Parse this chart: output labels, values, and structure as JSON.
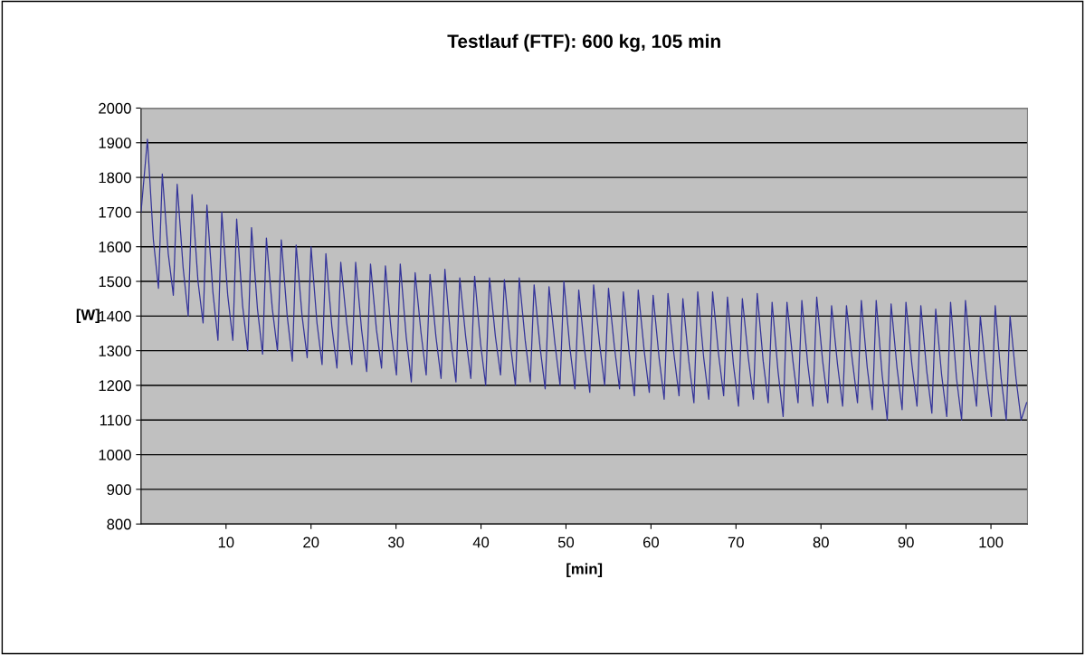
{
  "chart_data": {
    "type": "line",
    "title": "Testlauf (FTF): 600 kg, 105 min",
    "xlabel": "[min]",
    "ylabel": "[W]",
    "xlim": [
      0,
      104.3
    ],
    "xticks": [
      10,
      20,
      30,
      40,
      50,
      60,
      70,
      80,
      90,
      100
    ],
    "ylim": [
      800,
      2000
    ],
    "yticks": [
      800,
      900,
      1000,
      1100,
      1200,
      1300,
      1400,
      1500,
      1600,
      1700,
      1800,
      1900,
      2000
    ],
    "grid": "y",
    "marker": "none",
    "line_style": "solid",
    "series": [
      {
        "color": "#333399",
        "x": [
          0,
          0.75,
          1.45,
          2.05,
          2.5,
          3.2,
          3.8,
          4.25,
          4.95,
          5.55,
          6,
          6.7,
          7.3,
          7.75,
          8.45,
          9.05,
          9.5,
          10.2,
          10.8,
          11.25,
          11.95,
          12.55,
          13,
          13.7,
          14.3,
          14.75,
          15.45,
          16.05,
          16.5,
          17.2,
          17.8,
          18.25,
          18.95,
          19.55,
          20,
          20.7,
          21.3,
          21.75,
          22.45,
          23.05,
          23.5,
          24.2,
          24.8,
          25.25,
          25.95,
          26.55,
          27,
          27.7,
          28.3,
          28.75,
          29.45,
          30.05,
          30.5,
          31.2,
          31.8,
          32.25,
          32.95,
          33.55,
          34,
          34.7,
          35.3,
          35.75,
          36.45,
          37.05,
          37.5,
          38.2,
          38.8,
          39.25,
          39.95,
          40.55,
          41,
          41.7,
          42.3,
          42.75,
          43.45,
          44.05,
          44.5,
          45.2,
          45.8,
          46.25,
          46.95,
          47.55,
          48,
          48.7,
          49.3,
          49.75,
          50.45,
          51.05,
          51.5,
          52.2,
          52.8,
          53.25,
          53.95,
          54.55,
          55,
          55.7,
          56.3,
          56.75,
          57.45,
          58.05,
          58.5,
          59.2,
          59.8,
          60.25,
          60.95,
          61.55,
          62,
          62.7,
          63.3,
          63.75,
          64.45,
          65.05,
          65.5,
          66.2,
          66.8,
          67.25,
          67.95,
          68.55,
          69,
          69.7,
          70.3,
          70.75,
          71.45,
          72.05,
          72.5,
          73.2,
          73.8,
          74.25,
          74.95,
          75.55,
          76,
          76.7,
          77.3,
          77.75,
          78.45,
          79.05,
          79.5,
          80.2,
          80.8,
          81.25,
          81.95,
          82.55,
          83,
          83.7,
          84.3,
          84.75,
          85.45,
          86.05,
          86.5,
          87.2,
          87.8,
          88.25,
          88.95,
          89.55,
          90,
          90.7,
          91.3,
          91.75,
          92.45,
          93.05,
          93.5,
          94.2,
          94.8,
          95.25,
          95.95,
          96.55,
          97,
          97.7,
          98.3,
          98.75,
          99.45,
          100.05,
          100.5,
          101.2,
          101.8,
          102.25,
          102.95,
          103.55,
          104.2
        ],
        "values": [
          1700,
          1910,
          1620,
          1480,
          1810,
          1580,
          1460,
          1780,
          1540,
          1400,
          1750,
          1500,
          1380,
          1720,
          1470,
          1330,
          1700,
          1460,
          1330,
          1680,
          1430,
          1300,
          1655,
          1420,
          1290,
          1625,
          1420,
          1300,
          1620,
          1400,
          1270,
          1605,
          1400,
          1280,
          1600,
          1380,
          1260,
          1580,
          1370,
          1250,
          1555,
          1380,
          1260,
          1555,
          1360,
          1240,
          1550,
          1360,
          1250,
          1545,
          1350,
          1230,
          1550,
          1340,
          1210,
          1525,
          1350,
          1230,
          1520,
          1340,
          1220,
          1535,
          1330,
          1210,
          1510,
          1340,
          1220,
          1515,
          1320,
          1200,
          1510,
          1340,
          1230,
          1505,
          1320,
          1200,
          1510,
          1330,
          1210,
          1490,
          1310,
          1190,
          1485,
          1320,
          1200,
          1500,
          1310,
          1190,
          1475,
          1300,
          1180,
          1490,
          1320,
          1200,
          1480,
          1310,
          1190,
          1470,
          1290,
          1170,
          1475,
          1300,
          1180,
          1460,
          1280,
          1160,
          1465,
          1290,
          1170,
          1450,
          1270,
          1150,
          1470,
          1280,
          1160,
          1470,
          1290,
          1170,
          1455,
          1260,
          1140,
          1450,
          1280,
          1160,
          1465,
          1270,
          1150,
          1440,
          1240,
          1110,
          1440,
          1270,
          1150,
          1445,
          1260,
          1140,
          1455,
          1270,
          1150,
          1430,
          1260,
          1140,
          1430,
          1270,
          1150,
          1445,
          1250,
          1130,
          1445,
          1230,
          1100,
          1435,
          1250,
          1130,
          1440,
          1260,
          1140,
          1430,
          1240,
          1120,
          1420,
          1230,
          1110,
          1440,
          1220,
          1100,
          1445,
          1260,
          1140,
          1400,
          1230,
          1110,
          1430,
          1220,
          1100,
          1400,
          1220,
          1100,
          1150
        ]
      }
    ]
  }
}
